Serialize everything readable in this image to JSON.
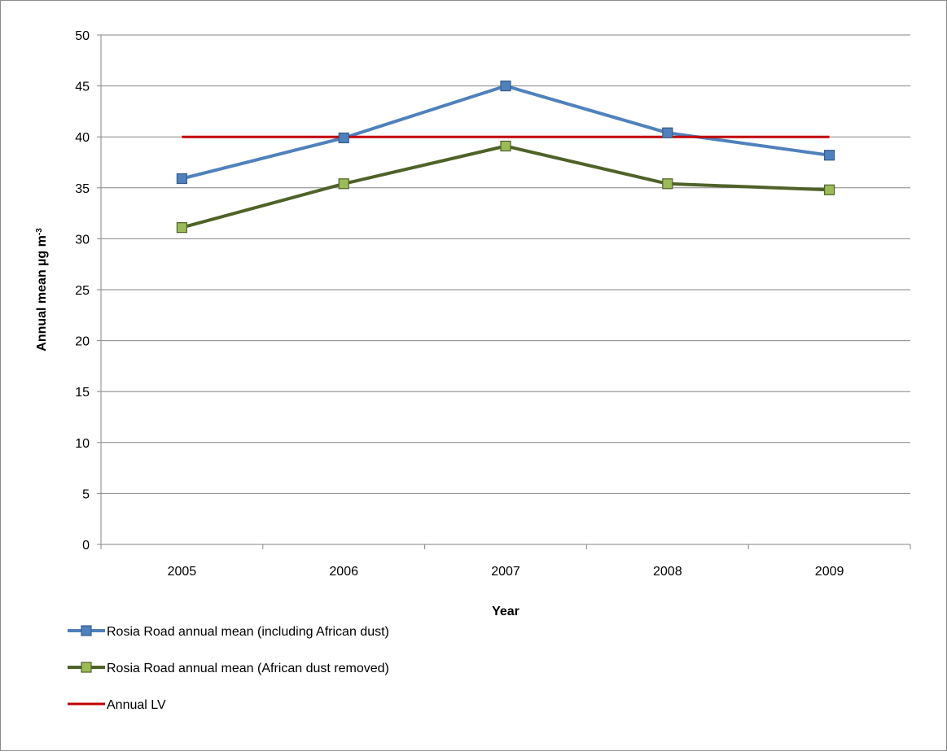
{
  "chart_data": {
    "type": "line",
    "title": "",
    "xlabel": "Year",
    "ylabel": "Annual mean µg m",
    "ylabel_superscript": "-3",
    "categories": [
      "2005",
      "2006",
      "2007",
      "2008",
      "2009"
    ],
    "ylim": [
      0,
      50
    ],
    "yticks": [
      0,
      5,
      10,
      15,
      20,
      25,
      30,
      35,
      40,
      45,
      50
    ],
    "grid": true,
    "legend_position": "bottom-left",
    "series": [
      {
        "name": "Rosia Road annual mean (including African dust)",
        "values": [
          35.9,
          39.9,
          45.0,
          40.4,
          38.2
        ],
        "color": "#4f81bd",
        "marker": "square",
        "marker_fill": "#4f81bd"
      },
      {
        "name": "Rosia Road annual mean (African dust removed)",
        "values": [
          31.1,
          35.4,
          39.1,
          35.4,
          34.8
        ],
        "color": "#4f6228",
        "marker": "square",
        "marker_fill": "#9bbb59"
      },
      {
        "name": "Annual LV",
        "values": [
          40,
          40,
          40,
          40,
          40
        ],
        "color": "#c00000",
        "marker": "none"
      }
    ]
  }
}
